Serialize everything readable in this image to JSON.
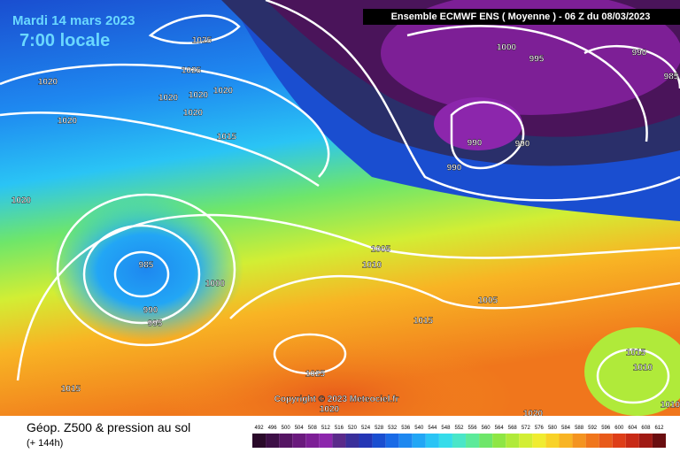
{
  "header": {
    "date": "Mardi 14 mars 2023",
    "time": "7:00 locale",
    "model": "Ensemble ECMWF ENS  ( Moyenne )  - 06 Z du 08/03/2023"
  },
  "copyright": "Copyright © 2023 Meteociel.fr",
  "footer": {
    "title": "Géop. Z500 & pression au sol",
    "lead": "(+ 144h)"
  },
  "isobar_labels": [
    1025,
    1025,
    1020,
    1020,
    1020,
    1020,
    1020,
    1020,
    1015,
    1020,
    1000,
    995,
    990,
    985,
    990,
    990,
    990,
    985,
    1000,
    990,
    995,
    1005,
    1010,
    1005,
    1015,
    1025,
    1015,
    1010,
    1015,
    1020,
    1020,
    1010
  ],
  "colorbar": {
    "ticks": [
      492,
      496,
      500,
      504,
      508,
      512,
      516,
      520,
      524,
      528,
      532,
      536,
      540,
      544,
      548,
      552,
      556,
      560,
      564,
      568,
      572,
      576,
      580,
      584,
      588,
      592,
      596,
      600,
      604,
      608,
      612
    ],
    "colors": [
      "#2a0a2a",
      "#3d0f46",
      "#551563",
      "#6a1a7d",
      "#7d1f96",
      "#8c26ac",
      "#5a2a8a",
      "#3a2f9a",
      "#2436b5",
      "#1a4ed0",
      "#1a6ae6",
      "#1e88f0",
      "#22a6f5",
      "#2ac4f5",
      "#36dcea",
      "#4ae6c8",
      "#5cea9a",
      "#6ee66a",
      "#8ee644",
      "#b0ea3a",
      "#d2ee34",
      "#f0ec30",
      "#f8d228",
      "#f8b424",
      "#f49420",
      "#f0761c",
      "#e85a1a",
      "#de3e18",
      "#c82a16",
      "#a01a14",
      "#6a0e10"
    ]
  }
}
